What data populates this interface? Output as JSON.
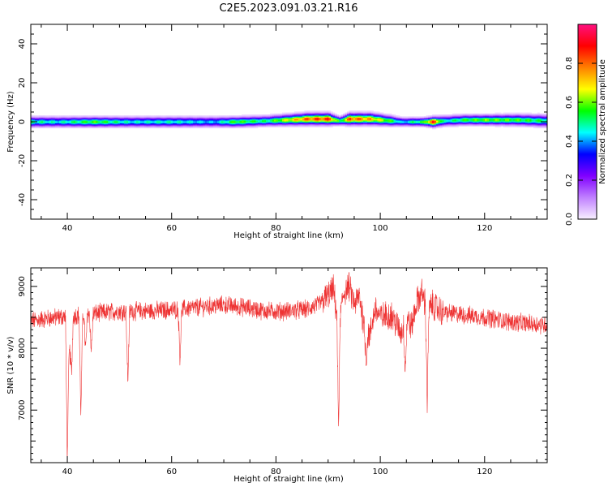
{
  "title": "C2E5.2023.091.03.21.R16",
  "chart_data": [
    {
      "type": "heatmap",
      "xlabel": "Height of straight line (km)",
      "ylabel": "Frequency (Hz)",
      "xlim": [
        33,
        132
      ],
      "ylim": [
        -50,
        50
      ],
      "x_ticks": [
        40,
        60,
        80,
        100,
        120
      ],
      "y_ticks": [
        -40,
        -20,
        0,
        20,
        40
      ],
      "colorbar": {
        "label": "Normalized spectral amplitude",
        "range": [
          0.0,
          1.0
        ],
        "ticks": [
          0.0,
          0.2,
          0.4,
          0.6,
          0.8
        ],
        "colormap": [
          "#f8f0ff",
          "#c080ff",
          "#8000ff",
          "#0000ff",
          "#00ffff",
          "#00ff00",
          "#ffff00",
          "#ff8000",
          "#ff0000",
          "#ff1080"
        ]
      },
      "ridge": {
        "x": [
          33,
          38,
          45,
          52,
          60,
          68,
          72,
          78,
          82,
          86,
          90,
          92,
          94,
          98,
          102,
          104,
          106,
          108,
          110,
          112,
          116,
          120,
          126,
          132
        ],
        "center_hz": [
          0,
          0,
          0,
          0,
          0,
          0,
          0,
          0.5,
          1,
          1.5,
          1.5,
          0.5,
          1.5,
          1.5,
          0.5,
          0,
          0,
          0,
          0,
          0.5,
          1,
          1,
          1,
          0.5
        ],
        "peak_amplitude": [
          0.55,
          0.5,
          0.62,
          0.5,
          0.52,
          0.45,
          0.62,
          0.55,
          0.72,
          0.88,
          0.92,
          0.55,
          0.9,
          0.8,
          0.6,
          0.45,
          0.55,
          0.6,
          0.95,
          0.5,
          0.6,
          0.65,
          0.62,
          0.55
        ],
        "width_hz": [
          3,
          3,
          3,
          3,
          3,
          3,
          3,
          3,
          3.2,
          3.5,
          3.5,
          2.5,
          3.5,
          3.5,
          3,
          2.5,
          2.5,
          2.5,
          3,
          3,
          3,
          3,
          3.2,
          3.5
        ]
      }
    },
    {
      "type": "line",
      "xlabel": "Height of straight line (km)",
      "ylabel": "SNR (10 * v/v)",
      "xlim": [
        33,
        132
      ],
      "ylim": [
        6150,
        9300
      ],
      "x_ticks": [
        40,
        60,
        80,
        100,
        120
      ],
      "y_ticks": [
        7000,
        8000,
        9000
      ],
      "color": "#ee3333",
      "series": [
        {
          "x": [
            33,
            36,
            40,
            45,
            50,
            55,
            60,
            65,
            70,
            74,
            78,
            82,
            86,
            88,
            90,
            91,
            92,
            93,
            94,
            95,
            96,
            97,
            98,
            99,
            100,
            102,
            104,
            105,
            106,
            107,
            108,
            109,
            110,
            112,
            116,
            120,
            124,
            128,
            132
          ],
          "values": [
            8440,
            8480,
            8520,
            8560,
            8600,
            8600,
            8620,
            8660,
            8700,
            8660,
            8600,
            8600,
            8630,
            8700,
            8850,
            8950,
            8350,
            8900,
            9000,
            8700,
            8850,
            8300,
            8200,
            8650,
            8500,
            8550,
            8250,
            8500,
            8350,
            8750,
            8900,
            8600,
            8700,
            8580,
            8540,
            8500,
            8440,
            8400,
            8380
          ],
          "noise_amplitude": 130
        }
      ],
      "dips": [
        {
          "x": 40.0,
          "y": 6150
        },
        {
          "x": 40.4,
          "y": 7880
        },
        {
          "x": 40.8,
          "y": 7540
        },
        {
          "x": 42.6,
          "y": 6900
        },
        {
          "x": 43.5,
          "y": 7950
        },
        {
          "x": 44.6,
          "y": 7950
        },
        {
          "x": 51.6,
          "y": 7450
        },
        {
          "x": 61.6,
          "y": 7820
        },
        {
          "x": 92.0,
          "y": 6750
        },
        {
          "x": 97.3,
          "y": 7800
        },
        {
          "x": 104.8,
          "y": 7650
        },
        {
          "x": 109.0,
          "y": 7080
        }
      ]
    }
  ]
}
